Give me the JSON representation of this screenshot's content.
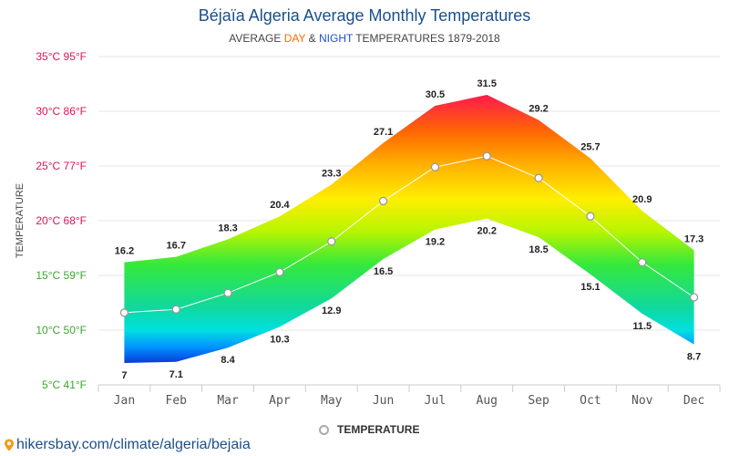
{
  "header": {
    "title": "Béjaïa Algeria Average Monthly Temperatures",
    "subtitle_prefix": "AVERAGE ",
    "subtitle_day": "DAY",
    "subtitle_amp": " & ",
    "subtitle_night": "NIGHT",
    "subtitle_suffix": " TEMPERATURES 1879-2018"
  },
  "legend": {
    "label": "TEMPERATURE"
  },
  "footer": {
    "url": "hikersbay.com/climate/algeria/bejaia"
  },
  "chart_data": {
    "type": "area",
    "ylabel": "TEMPERATURE",
    "ylim": [
      5,
      35
    ],
    "yticks": [
      {
        "value": 35,
        "label": "35°C 95°F",
        "color": "#e0125a"
      },
      {
        "value": 30,
        "label": "30°C 86°F",
        "color": "#e0125a"
      },
      {
        "value": 25,
        "label": "25°C 77°F",
        "color": "#e0125a"
      },
      {
        "value": 20,
        "label": "20°C 68°F",
        "color": "#e0125a"
      },
      {
        "value": 15,
        "label": "15°C 59°F",
        "color": "#3aa82c"
      },
      {
        "value": 10,
        "label": "10°C 50°F",
        "color": "#3aa82c"
      },
      {
        "value": 5,
        "label": "5°C 41°F",
        "color": "#3aa82c"
      }
    ],
    "categories": [
      "Jan",
      "Feb",
      "Mar",
      "Apr",
      "May",
      "Jun",
      "Jul",
      "Aug",
      "Sep",
      "Oct",
      "Nov",
      "Dec"
    ],
    "series": [
      {
        "name": "DAY",
        "values": [
          16.2,
          16.7,
          18.3,
          20.4,
          23.3,
          27.1,
          30.5,
          31.5,
          29.2,
          25.7,
          20.9,
          17.3
        ]
      },
      {
        "name": "NIGHT",
        "values": [
          7,
          7.1,
          8.4,
          10.3,
          12.9,
          16.5,
          19.2,
          20.2,
          18.5,
          15.1,
          11.5,
          8.7
        ]
      },
      {
        "name": "TEMPERATURE",
        "values": [
          11.6,
          11.9,
          13.4,
          15.3,
          18.1,
          21.8,
          24.9,
          25.9,
          23.9,
          20.4,
          16.2,
          13
        ]
      }
    ],
    "grid": true,
    "legend_position": "bottom"
  }
}
